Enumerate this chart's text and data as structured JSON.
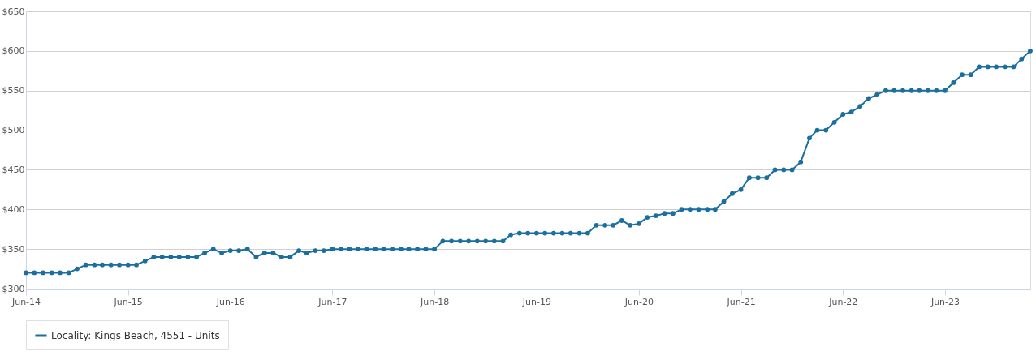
{
  "chart_data": {
    "type": "line",
    "x": [
      "2014-06",
      "2014-07",
      "2014-08",
      "2014-09",
      "2014-10",
      "2014-11",
      "2014-12",
      "2015-01",
      "2015-02",
      "2015-03",
      "2015-04",
      "2015-05",
      "2015-06",
      "2015-07",
      "2015-08",
      "2015-09",
      "2015-10",
      "2015-11",
      "2015-12",
      "2016-01",
      "2016-02",
      "2016-03",
      "2016-04",
      "2016-05",
      "2016-06",
      "2016-07",
      "2016-08",
      "2016-09",
      "2016-10",
      "2016-11",
      "2016-12",
      "2017-01",
      "2017-02",
      "2017-03",
      "2017-04",
      "2017-05",
      "2017-06",
      "2017-07",
      "2017-08",
      "2017-09",
      "2017-10",
      "2017-11",
      "2017-12",
      "2018-01",
      "2018-02",
      "2018-03",
      "2018-04",
      "2018-05",
      "2018-06",
      "2018-07",
      "2018-08",
      "2018-09",
      "2018-10",
      "2018-11",
      "2018-12",
      "2019-01",
      "2019-02",
      "2019-03",
      "2019-04",
      "2019-05",
      "2019-06",
      "2019-07",
      "2019-08",
      "2019-09",
      "2019-10",
      "2019-11",
      "2019-12",
      "2020-01",
      "2020-02",
      "2020-03",
      "2020-04",
      "2020-05",
      "2020-06",
      "2020-07",
      "2020-08",
      "2020-09",
      "2020-10",
      "2020-11",
      "2020-12",
      "2021-01",
      "2021-02",
      "2021-03",
      "2021-04",
      "2021-05",
      "2021-06",
      "2021-07",
      "2021-08",
      "2021-09",
      "2021-10",
      "2021-11",
      "2021-12",
      "2022-01",
      "2022-02",
      "2022-03",
      "2022-04",
      "2022-05",
      "2022-06",
      "2022-07",
      "2022-08",
      "2022-09",
      "2022-10",
      "2022-11",
      "2022-12",
      "2023-01",
      "2023-02",
      "2023-03",
      "2023-04",
      "2023-05",
      "2023-06",
      "2023-07",
      "2023-08",
      "2023-09",
      "2023-10",
      "2023-11",
      "2023-12",
      "2024-01",
      "2024-02",
      "2024-03",
      "2024-04"
    ],
    "series": [
      {
        "name": "Locality: Kings Beach, 4551 - Units",
        "color": "#1b6f9f",
        "values": [
          320,
          320,
          320,
          320,
          320,
          320,
          325,
          330,
          330,
          330,
          330,
          330,
          330,
          330,
          335,
          340,
          340,
          340,
          340,
          340,
          340,
          345,
          350,
          345,
          348,
          348,
          350,
          340,
          345,
          345,
          340,
          340,
          348,
          345,
          348,
          348,
          350,
          350,
          350,
          350,
          350,
          350,
          350,
          350,
          350,
          350,
          350,
          350,
          350,
          360,
          360,
          360,
          360,
          360,
          360,
          360,
          360,
          368,
          370,
          370,
          370,
          370,
          370,
          370,
          370,
          370,
          370,
          380,
          380,
          380,
          386,
          380,
          382,
          390,
          392,
          395,
          395,
          400,
          400,
          400,
          400,
          400,
          410,
          420,
          425,
          440,
          440,
          440,
          450,
          450,
          450,
          460,
          490,
          500,
          500,
          510,
          520,
          523,
          530,
          540,
          545,
          550,
          550,
          550,
          550,
          550,
          550,
          550,
          550,
          560,
          570,
          570,
          580,
          580,
          580,
          580,
          580,
          590,
          600
        ]
      }
    ],
    "xlim": [
      "2014-06",
      "2024-04"
    ],
    "xticks": [
      {
        "value": "2014-06",
        "label": "Jun-14"
      },
      {
        "value": "2015-06",
        "label": "Jun-15"
      },
      {
        "value": "2016-06",
        "label": "Jun-16"
      },
      {
        "value": "2017-06",
        "label": "Jun-17"
      },
      {
        "value": "2018-06",
        "label": "Jun-18"
      },
      {
        "value": "2019-06",
        "label": "Jun-19"
      },
      {
        "value": "2020-06",
        "label": "Jun-20"
      },
      {
        "value": "2021-06",
        "label": "Jun-21"
      },
      {
        "value": "2022-06",
        "label": "Jun-22"
      },
      {
        "value": "2023-06",
        "label": "Jun-23"
      }
    ],
    "ylim": [
      300,
      650
    ],
    "yticks": [
      {
        "value": 300,
        "label": "$300"
      },
      {
        "value": 350,
        "label": "$350"
      },
      {
        "value": 400,
        "label": "$400"
      },
      {
        "value": 450,
        "label": "$450"
      },
      {
        "value": 500,
        "label": "$500"
      },
      {
        "value": 550,
        "label": "$550"
      },
      {
        "value": 600,
        "label": "$600"
      },
      {
        "value": 650,
        "label": "$650"
      }
    ],
    "grid": "y",
    "legend": "bottom",
    "marker": "circle",
    "line_style": "solid"
  }
}
